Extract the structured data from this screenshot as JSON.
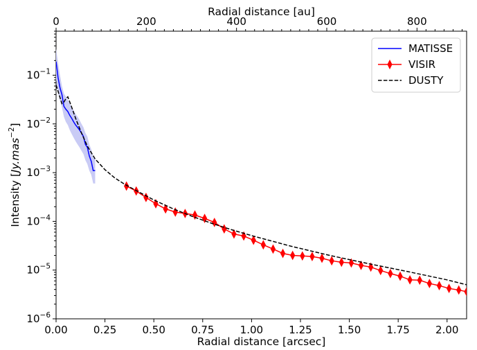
{
  "chart_data": {
    "type": "line",
    "xlabel": "Radial distance [arcsec]",
    "x2label": "Radial distance [au]",
    "ylabel_prefix": "Intensity [",
    "ylabel_unit": "Jy.mas",
    "ylabel_exp": "−2",
    "ylabel_suffix": "]",
    "xlim": [
      0.0,
      2.1
    ],
    "x2lim": [
      0,
      910
    ],
    "ylim": [
      1e-06,
      0.8
    ],
    "yscale": "log",
    "grid": false,
    "legend_position": "top-right",
    "x_ticks": [
      "0.00",
      "0.25",
      "0.50",
      "0.75",
      "1.00",
      "1.25",
      "1.50",
      "1.75",
      "2.00"
    ],
    "x_tick_values": [
      0.0,
      0.25,
      0.5,
      0.75,
      1.0,
      1.25,
      1.5,
      1.75,
      2.0
    ],
    "x2_ticks": [
      "0",
      "200",
      "400",
      "600",
      "800"
    ],
    "x2_tick_values": [
      0,
      200,
      400,
      600,
      800
    ],
    "y_ticks": [
      {
        "base": "10",
        "exp": "−1",
        "value": 0.1
      },
      {
        "base": "10",
        "exp": "−2",
        "value": 0.01
      },
      {
        "base": "10",
        "exp": "−3",
        "value": 0.001
      },
      {
        "base": "10",
        "exp": "−4",
        "value": 0.0001
      },
      {
        "base": "10",
        "exp": "−5",
        "value": 1e-05
      },
      {
        "base": "10",
        "exp": "−6",
        "value": 1e-06
      }
    ],
    "series": [
      {
        "name": "MATISSE",
        "color": "#0000ff",
        "style": "solid",
        "x": [
          0.0,
          0.01,
          0.02,
          0.03,
          0.04,
          0.05,
          0.06,
          0.07,
          0.08,
          0.09,
          0.1,
          0.11,
          0.12,
          0.13,
          0.14,
          0.15,
          0.16,
          0.17,
          0.18,
          0.19,
          0.2
        ],
        "y": [
          0.19,
          0.09,
          0.055,
          0.04,
          0.023,
          0.02,
          0.018,
          0.015,
          0.013,
          0.011,
          0.0095,
          0.0085,
          0.0075,
          0.0065,
          0.0055,
          0.0038,
          0.0033,
          0.0022,
          0.0017,
          0.0011,
          0.0011
        ],
        "band_upper": [
          0.35,
          0.18,
          0.1,
          0.06,
          0.042,
          0.036,
          0.031,
          0.026,
          0.022,
          0.019,
          0.016,
          0.014,
          0.012,
          0.01,
          0.0085,
          0.0065,
          0.0055,
          0.0038,
          0.003,
          0.002,
          0.0019
        ],
        "band_lower": [
          0.08,
          0.045,
          0.03,
          0.022,
          0.014,
          0.011,
          0.0095,
          0.0075,
          0.0062,
          0.0052,
          0.0044,
          0.0038,
          0.0033,
          0.0028,
          0.0024,
          0.0018,
          0.0015,
          0.0011,
          0.0009,
          0.0006,
          0.0006
        ],
        "band_color": "#c9cbf5"
      },
      {
        "name": "VISIR",
        "color": "#ff0000",
        "style": "solid-diamond",
        "x": [
          0.36,
          0.41,
          0.46,
          0.51,
          0.56,
          0.61,
          0.66,
          0.71,
          0.76,
          0.81,
          0.86,
          0.91,
          0.96,
          1.01,
          1.06,
          1.11,
          1.16,
          1.21,
          1.26,
          1.31,
          1.36,
          1.41,
          1.46,
          1.51,
          1.56,
          1.61,
          1.66,
          1.71,
          1.76,
          1.81,
          1.86,
          1.91,
          1.96,
          2.01,
          2.06,
          2.1
        ],
        "y": [
          0.00053,
          0.00042,
          0.00031,
          0.00023,
          0.00018,
          0.000155,
          0.000145,
          0.000135,
          0.000115,
          9.5e-05,
          7e-05,
          5.5e-05,
          5e-05,
          4.1e-05,
          3.3e-05,
          2.7e-05,
          2.2e-05,
          2e-05,
          1.95e-05,
          1.9e-05,
          1.75e-05,
          1.55e-05,
          1.45e-05,
          1.4e-05,
          1.25e-05,
          1.15e-05,
          9.8e-06,
          8.5e-06,
          7.5e-06,
          6.3e-06,
          6.2e-06,
          5.3e-06,
          4.8e-06,
          4.2e-06,
          3.9e-06,
          3.6e-06
        ]
      },
      {
        "name": "DUSTY",
        "color": "#000000",
        "style": "dashed",
        "x": [
          0.0,
          0.03,
          0.04,
          0.05,
          0.06,
          0.08,
          0.1,
          0.13,
          0.16,
          0.2,
          0.25,
          0.3,
          0.35,
          0.4,
          0.5,
          0.6,
          0.7,
          0.8,
          0.9,
          1.0,
          1.2,
          1.4,
          1.6,
          1.8,
          2.0,
          2.1
        ],
        "y": [
          0.063,
          0.026,
          0.028,
          0.033,
          0.036,
          0.022,
          0.013,
          0.0065,
          0.0035,
          0.0019,
          0.00115,
          0.00078,
          0.00058,
          0.00045,
          0.000275,
          0.00018,
          0.000125,
          9e-05,
          6.7e-05,
          5.1e-05,
          3.1e-05,
          2e-05,
          1.35e-05,
          9.3e-06,
          6.3e-06,
          5e-06
        ]
      }
    ]
  }
}
